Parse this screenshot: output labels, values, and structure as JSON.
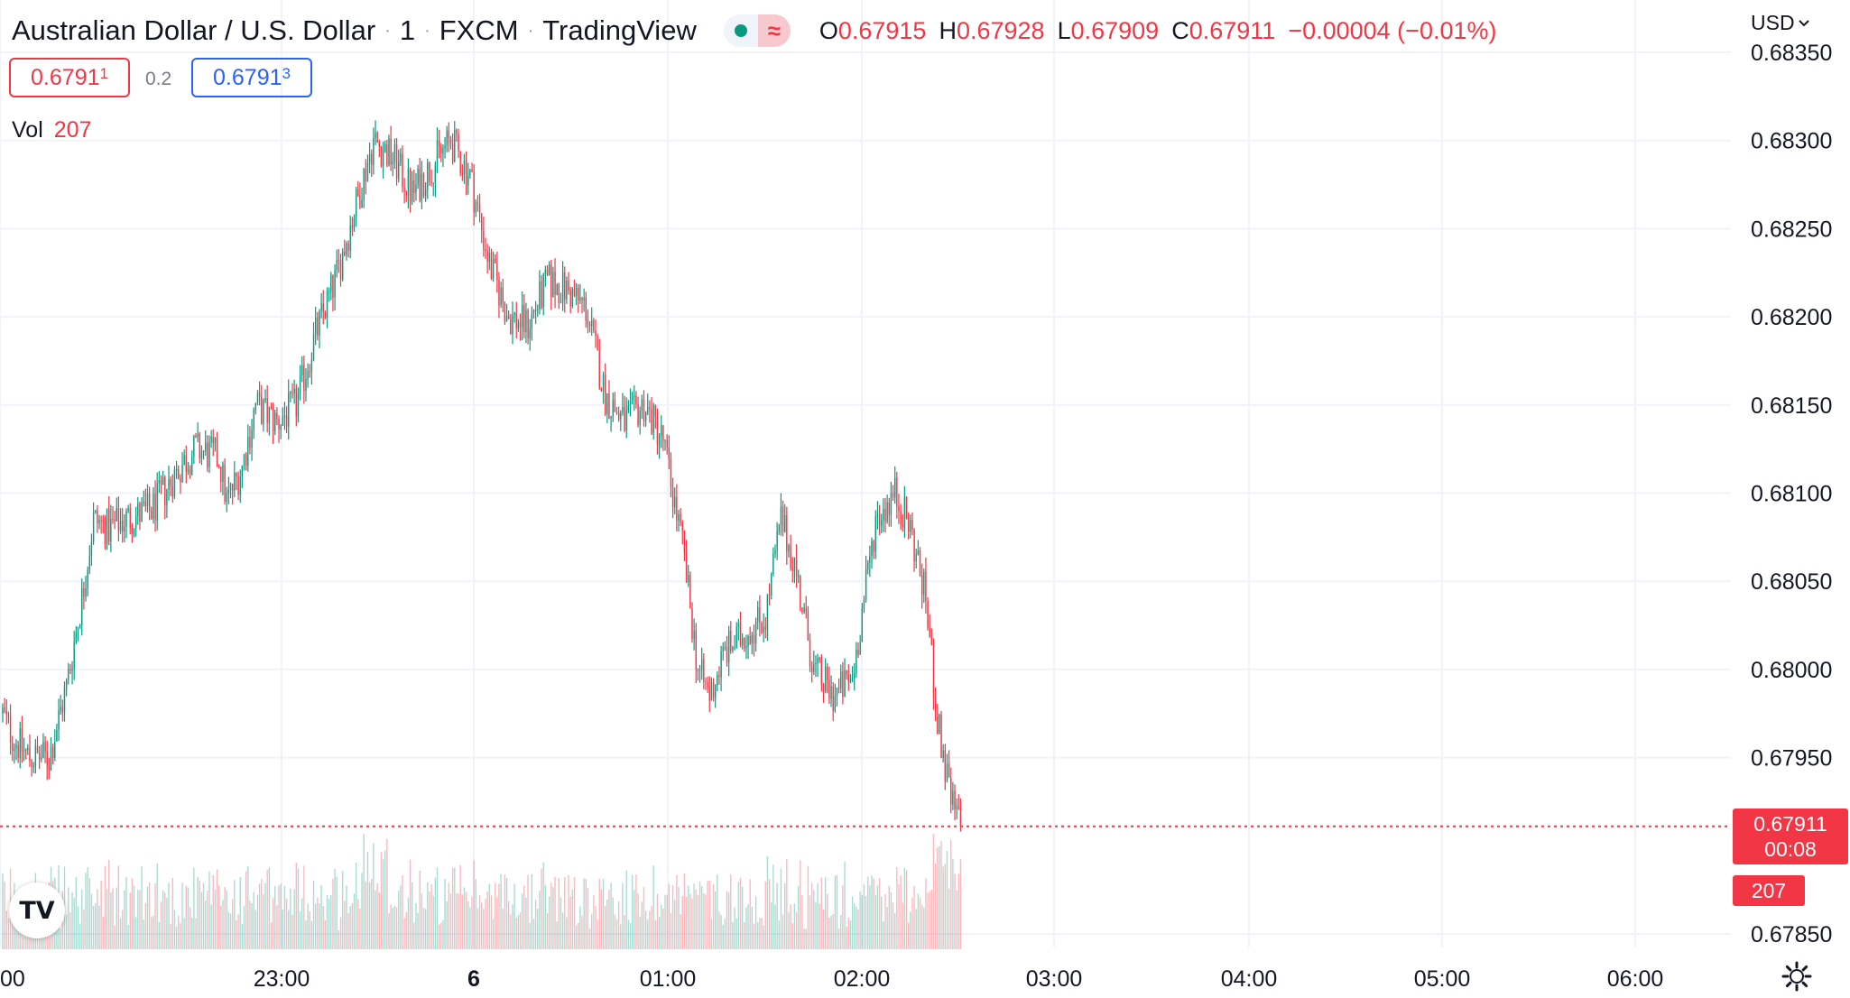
{
  "header": {
    "symbol": "Australian Dollar / U.S. Dollar",
    "interval": "1",
    "exchange": "FXCM",
    "source": "TradingView",
    "wave_glyph": "≈",
    "ohlc": {
      "o_label": "O",
      "o": "0.67915",
      "h_label": "H",
      "h": "0.67928",
      "l_label": "L",
      "l": "0.67909",
      "c_label": "C",
      "c": "0.67911",
      "change": "−0.00004 (−0.01%)"
    }
  },
  "quote": {
    "bid_main": "0.6791",
    "bid_sup": "1",
    "spread": "0.2",
    "ask_main": "0.6791",
    "ask_sup": "3"
  },
  "volume": {
    "label": "Vol",
    "value": "207"
  },
  "currency_menu": {
    "label": "USD",
    "icon": "chevron-down-icon"
  },
  "last_price": {
    "price": "0.67911",
    "countdown": "00:08",
    "volume": "207"
  },
  "logo_text": "TV",
  "colors": {
    "up": "#089981",
    "down": "#f23645",
    "grid": "#f0f3fa",
    "accent_blue": "#2962ff"
  },
  "chart_data": {
    "type": "candlestick",
    "title": "Australian Dollar / U.S. Dollar · 1 · FXCM",
    "y_ticks": [
      "0.68350",
      "0.68300",
      "0.68250",
      "0.68200",
      "0.68150",
      "0.68100",
      "0.68050",
      "0.68000",
      "0.67950",
      "0.67850"
    ],
    "x_ticks": [
      "00",
      "23:00",
      "6",
      "01:00",
      "02:00",
      "03:00",
      "04:00",
      "05:00",
      "06:00"
    ],
    "ylim": [
      0.6784,
      0.6836
    ],
    "grid": true,
    "last_price_line": 0.67911,
    "close_path": [
      [
        0,
        0.67975
      ],
      [
        6,
        0.6796
      ],
      [
        14,
        0.6795
      ],
      [
        24,
        0.6795
      ],
      [
        33,
        0.6799
      ],
      [
        41,
        0.6804
      ],
      [
        47,
        0.68085
      ],
      [
        55,
        0.6808
      ],
      [
        63,
        0.68085
      ],
      [
        77,
        0.6809
      ],
      [
        92,
        0.68115
      ],
      [
        100,
        0.68125
      ],
      [
        112,
        0.6812
      ],
      [
        116,
        0.68095
      ],
      [
        124,
        0.68115
      ],
      [
        131,
        0.6815
      ],
      [
        142,
        0.6814
      ],
      [
        152,
        0.6815
      ],
      [
        162,
        0.6819
      ],
      [
        172,
        0.6822
      ],
      [
        182,
        0.6826
      ],
      [
        192,
        0.683
      ],
      [
        202,
        0.6829
      ],
      [
        212,
        0.6827
      ],
      [
        222,
        0.68285
      ],
      [
        232,
        0.683
      ],
      [
        242,
        0.6828
      ],
      [
        252,
        0.6823
      ],
      [
        262,
        0.682
      ],
      [
        272,
        0.68195
      ],
      [
        282,
        0.6822
      ],
      [
        292,
        0.68215
      ],
      [
        302,
        0.68205
      ],
      [
        312,
        0.68155
      ],
      [
        322,
        0.6814
      ],
      [
        332,
        0.6815
      ],
      [
        342,
        0.6813
      ],
      [
        352,
        0.6807
      ],
      [
        360,
        0.68
      ],
      [
        366,
        0.67985
      ],
      [
        374,
        0.6801
      ],
      [
        384,
        0.6802
      ],
      [
        395,
        0.6803
      ],
      [
        403,
        0.68085
      ],
      [
        410,
        0.6806
      ],
      [
        420,
        0.68
      ],
      [
        430,
        0.67985
      ],
      [
        440,
        0.67995
      ],
      [
        452,
        0.68085
      ],
      [
        462,
        0.681
      ],
      [
        470,
        0.6808
      ],
      [
        478,
        0.6804
      ],
      [
        484,
        0.6797
      ],
      [
        491,
        0.67925
      ],
      [
        496,
        0.67912
      ]
    ],
    "n_bars": 497,
    "candle_width_fraction": 0.65
  }
}
